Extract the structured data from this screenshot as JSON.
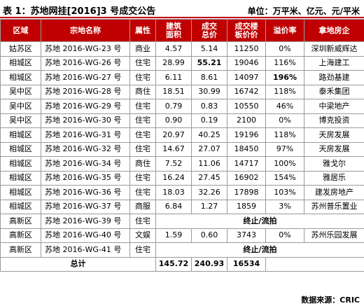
{
  "title": "表 1：苏地网挂[2016]3 号成交公告",
  "unit_note": "单位：万平米、亿元、元/平米",
  "columns": {
    "region": "区域",
    "parcel": "宗地名称",
    "use": "属性",
    "area_l1": "建筑",
    "area_l2": "面积",
    "price_l1": "成交",
    "price_l2": "总价",
    "floor_l1": "成交楼",
    "floor_l2": "板价价",
    "premium": "溢价率",
    "developer": "拿地房企"
  },
  "rows": [
    {
      "region": "姑苏区",
      "parcel": "苏地 2016-WG-23 号",
      "use": "商业",
      "area": "4.57",
      "price": "5.14",
      "floor": "11250",
      "premium": "0%",
      "developer": "深圳新威辉达"
    },
    {
      "region": "相城区",
      "parcel": "苏地 2016-WG-26 号",
      "use": "住宅",
      "area": "28.99",
      "price": "55.21",
      "floor": "19046",
      "premium": "116%",
      "developer": "上海建工"
    },
    {
      "region": "相城区",
      "parcel": "苏地 2016-WG-27 号",
      "use": "住宅",
      "area": "6.11",
      "price": "8.61",
      "floor": "14097",
      "premium": "196%",
      "developer": "路劲基建"
    },
    {
      "region": "吴中区",
      "parcel": "苏地 2016-WG-28 号",
      "use": "商住",
      "area": "18.51",
      "price": "30.99",
      "floor": "16742",
      "premium": "118%",
      "developer": "泰禾集团"
    },
    {
      "region": "吴中区",
      "parcel": "苏地 2016-WG-29 号",
      "use": "住宅",
      "area": "0.79",
      "price": "0.83",
      "floor": "10550",
      "premium": "46%",
      "developer": "中梁地产"
    },
    {
      "region": "吴中区",
      "parcel": "苏地 2016-WG-30 号",
      "use": "住宅",
      "area": "0.90",
      "price": "0.19",
      "floor": "2100",
      "premium": "0%",
      "developer": "博克投资"
    },
    {
      "region": "相城区",
      "parcel": "苏地 2016-WG-31 号",
      "use": "住宅",
      "area": "20.97",
      "price": "40.25",
      "floor": "19196",
      "premium": "118%",
      "developer": "天房发展"
    },
    {
      "region": "相城区",
      "parcel": "苏地 2016-WG-32 号",
      "use": "住宅",
      "area": "14.67",
      "price": "27.07",
      "floor": "18450",
      "premium": "97%",
      "developer": "天房发展"
    },
    {
      "region": "相城区",
      "parcel": "苏地 2016-WG-34 号",
      "use": "商住",
      "area": "7.52",
      "price": "11.06",
      "floor": "14717",
      "premium": "100%",
      "developer": "雅戈尔"
    },
    {
      "region": "相城区",
      "parcel": "苏地 2016-WG-35 号",
      "use": "住宅",
      "area": "16.24",
      "price": "27.45",
      "floor": "16902",
      "premium": "154%",
      "developer": "雅居乐"
    },
    {
      "region": "相城区",
      "parcel": "苏地 2016-WG-36 号",
      "use": "住宅",
      "area": "18.03",
      "price": "32.26",
      "floor": "17898",
      "premium": "103%",
      "developer": "建发房地产"
    },
    {
      "region": "相城区",
      "parcel": "苏地 2016-WG-37 号",
      "use": "商服",
      "area": "6.84",
      "price": "1.27",
      "floor": "1859",
      "premium": "3%",
      "developer": "苏州普乐置业"
    },
    {
      "region": "高新区",
      "parcel": "苏地 2016-WG-39 号",
      "use": "住宅",
      "merged": "终止/流拍"
    },
    {
      "region": "高新区",
      "parcel": "苏地 2016-WG-40 号",
      "use": "文娱",
      "area": "1.59",
      "price": "0.60",
      "floor": "3743",
      "premium": "0%",
      "developer": "苏州乐园发展"
    },
    {
      "region": "高新区",
      "parcel": "苏地 2016-WG-41 号",
      "use": "住宅",
      "merged": "终止/流拍"
    }
  ],
  "total": {
    "label": "总计",
    "area": "145.72",
    "price": "240.93",
    "floor": "16534"
  },
  "source": "数据来源：CRIC"
}
